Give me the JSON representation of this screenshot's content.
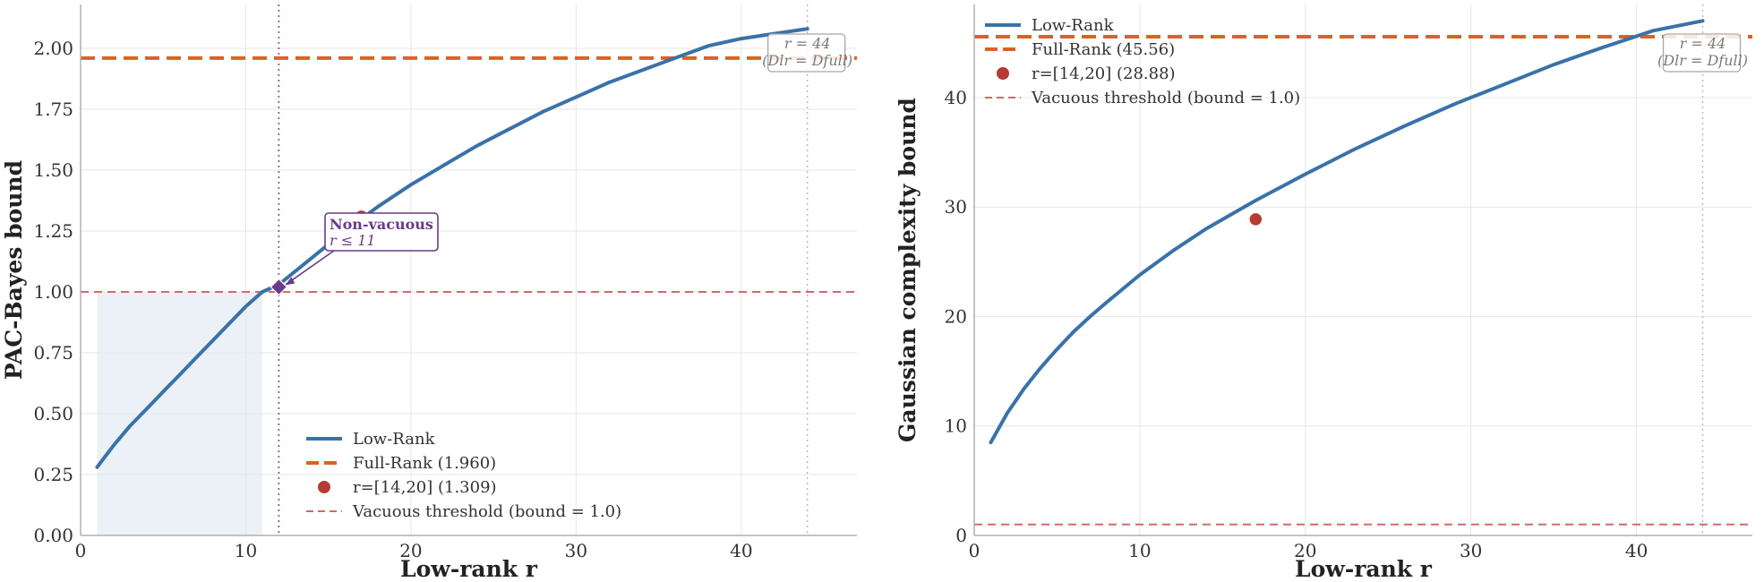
{
  "chart_data": [
    {
      "type": "line",
      "xlabel": "Low-rank  r",
      "ylabel": "PAC-Bayes bound",
      "xlim": [
        0,
        47
      ],
      "ylim": [
        0,
        2.18
      ],
      "xticks": [
        "0",
        "10",
        "20",
        "30",
        "40"
      ],
      "yticks": [
        "0.00",
        "0.25",
        "0.50",
        "0.75",
        "1.00",
        "1.25",
        "1.50",
        "1.75",
        "2.00"
      ],
      "grid": true,
      "legend_position": "lower-right",
      "series": [
        {
          "name": "Low-Rank",
          "x": [
            1,
            2,
            3,
            4,
            5,
            6,
            7,
            8,
            9,
            10,
            11,
            12,
            14,
            16,
            18,
            20,
            22,
            24,
            26,
            28,
            30,
            32,
            34,
            36,
            38,
            40,
            42,
            44
          ],
          "y": [
            0.28,
            0.37,
            0.45,
            0.52,
            0.59,
            0.66,
            0.73,
            0.8,
            0.87,
            0.94,
            1.0,
            1.03,
            1.14,
            1.25,
            1.35,
            1.44,
            1.52,
            1.6,
            1.67,
            1.74,
            1.8,
            1.86,
            1.91,
            1.96,
            2.01,
            2.04,
            2.06,
            2.08
          ]
        }
      ],
      "reference_lines": [
        {
          "name": "Full-Rank (1.960)",
          "value": 1.96,
          "orientation": "horizontal"
        },
        {
          "name": "Vacuous threshold (bound = 1.0)",
          "value": 1.0,
          "orientation": "horizontal"
        }
      ],
      "vertical_lines": [
        12,
        44
      ],
      "marker": {
        "name": "r=[14,20] (1.309)",
        "x": 17,
        "y": 1.309
      },
      "diamond": {
        "x": 12,
        "y": 1.02
      },
      "shaded_region": {
        "x": [
          1,
          11
        ],
        "y": [
          0,
          1.0
        ]
      },
      "annotations": {
        "non_vacuous_title": "Non-vacuous",
        "non_vacuous_sub": "r ≤ 11",
        "rank_note_1": "r = 44",
        "rank_note_2": "(Dlr = Dfull)"
      }
    },
    {
      "type": "line",
      "xlabel": "Low-rank  r",
      "ylabel": "Gaussian complexity bound",
      "xlim": [
        0,
        47
      ],
      "ylim": [
        0,
        48.5
      ],
      "xticks": [
        "0",
        "10",
        "20",
        "30",
        "40"
      ],
      "yticks": [
        "0",
        "10",
        "20",
        "30",
        "40"
      ],
      "grid": true,
      "legend_position": "upper-left",
      "series": [
        {
          "name": "Low-Rank",
          "x": [
            1,
            2,
            3,
            4,
            5,
            6,
            7,
            8,
            10,
            12,
            14,
            17,
            20,
            23,
            26,
            29,
            32,
            35,
            38,
            41,
            44
          ],
          "y": [
            8.5,
            11.2,
            13.4,
            15.3,
            17.0,
            18.6,
            20.0,
            21.3,
            23.8,
            26.0,
            28.0,
            30.6,
            33.0,
            35.3,
            37.4,
            39.4,
            41.2,
            43.0,
            44.6,
            46.1,
            47.0
          ]
        }
      ],
      "reference_lines": [
        {
          "name": "Full-Rank (45.56)",
          "value": 45.56,
          "orientation": "horizontal"
        },
        {
          "name": "Vacuous threshold (bound = 1.0)",
          "value": 1.0,
          "orientation": "horizontal"
        }
      ],
      "vertical_lines": [
        44
      ],
      "marker": {
        "name": "r=[14,20] (28.88)",
        "x": 17,
        "y": 28.88
      },
      "annotations": {
        "rank_note_1": "r = 44",
        "rank_note_2": "(Dlr = Dfull)"
      }
    }
  ],
  "colors": {
    "low_rank": "#3a72a8",
    "full_rank": "#dd6125",
    "marker": "#b53b34",
    "vacuous": "#d06a6a",
    "diamond": "#6b3a8a",
    "shade": "#dfe8f1"
  }
}
